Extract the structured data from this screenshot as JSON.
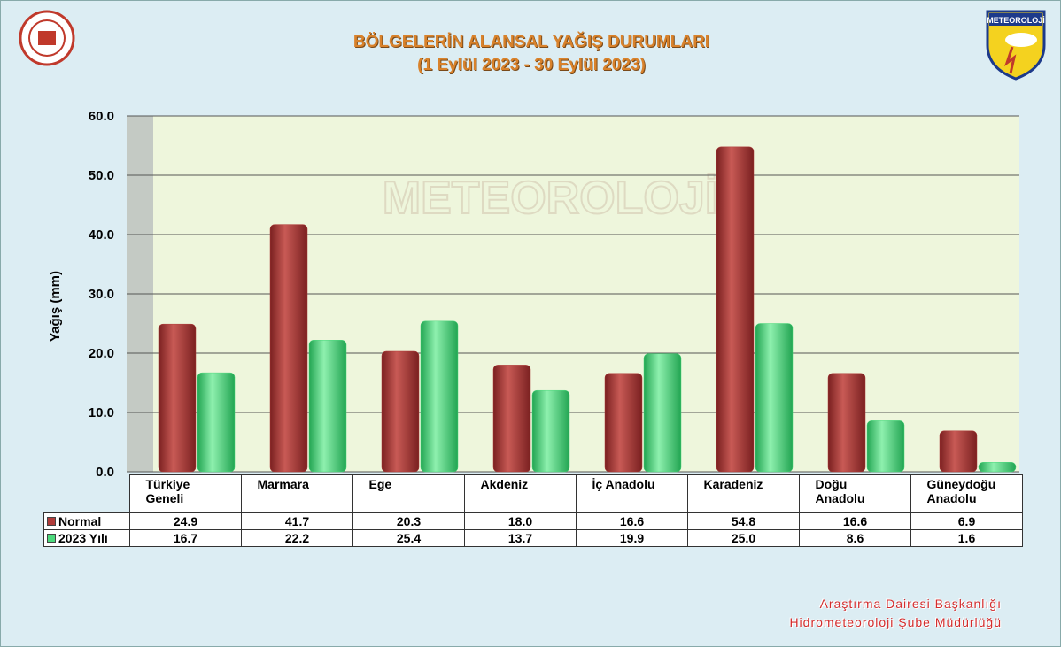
{
  "chart_data": {
    "type": "bar",
    "title": "BÖLGELERİN ALANSAL YAĞIŞ DURUMLARI",
    "subtitle": "(1 Eylül 2023 - 30 Eylül 2023)",
    "y_label": "Yağış (mm)",
    "logo_text": "METEOROLOJİ",
    "footer": [
      "Araştırma Dairesi Başkanlığı",
      "Hidrometeoroloji Şube Müdürlüğü"
    ],
    "categories": [
      "Türkiye Geneli",
      "Marmara",
      "Ege",
      "Akdeniz",
      "İç Anadolu",
      "Karadeniz",
      "Doğu Anadolu",
      "Güneydoğu Anadolu"
    ],
    "series": [
      {
        "name": "Normal",
        "color": "#b03c3a",
        "values": [
          24.9,
          41.7,
          20.3,
          18.0,
          16.6,
          54.8,
          16.6,
          6.9
        ],
        "value_labels": [
          "24.9",
          "41.7",
          "20.3",
          "18.0",
          "16.6",
          "54.8",
          "16.6",
          "6.9"
        ]
      },
      {
        "name": "2023 Yılı",
        "color": "#4cd97c",
        "values": [
          16.7,
          22.2,
          25.4,
          13.7,
          19.9,
          25.0,
          8.6,
          1.6
        ],
        "value_labels": [
          "16.7",
          "22.2",
          "25.4",
          "13.7",
          "19.9",
          "25.0",
          "8.6",
          "1.6"
        ]
      }
    ],
    "ylim": [
      0,
      60
    ],
    "yticks": [
      {
        "value": 0,
        "label": "0.0"
      },
      {
        "value": 10,
        "label": "10.0"
      },
      {
        "value": 20,
        "label": "20.0"
      },
      {
        "value": 30,
        "label": "30.0"
      },
      {
        "value": 40,
        "label": "40.0"
      },
      {
        "value": 50,
        "label": "50.0"
      },
      {
        "value": 60,
        "label": "60.0"
      }
    ],
    "grid": true
  }
}
